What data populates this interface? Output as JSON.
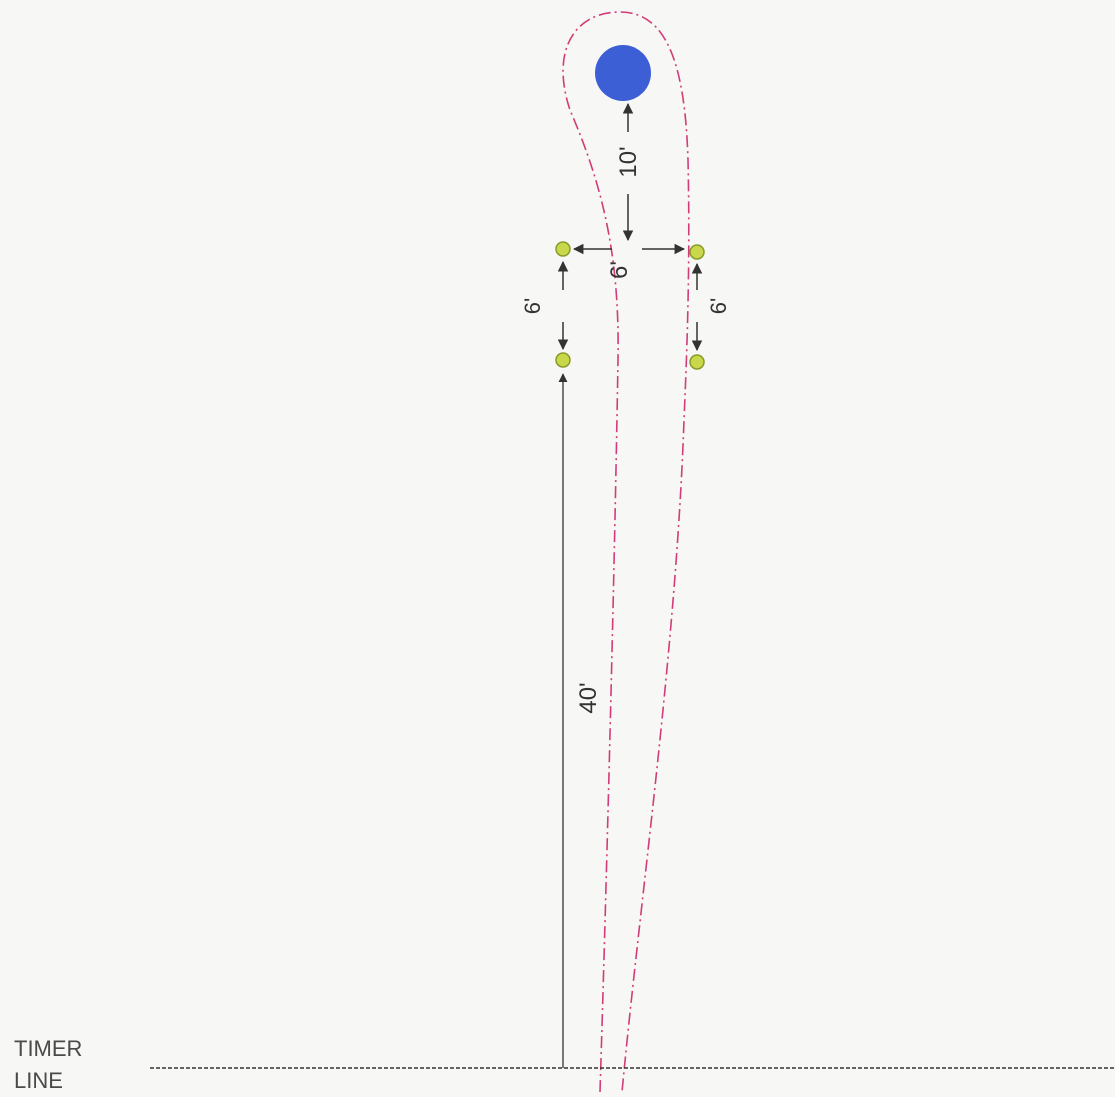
{
  "diagram": {
    "dimensions": {
      "barrel_to_poles": "10'",
      "poles_spacing": "6'",
      "left_poles_gap": "6'",
      "right_poles_gap": "6'",
      "timer_to_poles": "40'"
    },
    "timer_line": {
      "line1": "TIMER",
      "line2": "LINE"
    },
    "colors": {
      "barrel": "#3d5fd6",
      "pole": "#c8d84a",
      "path": "#d23c78",
      "line": "#333333",
      "background": "#f7f7f5"
    }
  }
}
